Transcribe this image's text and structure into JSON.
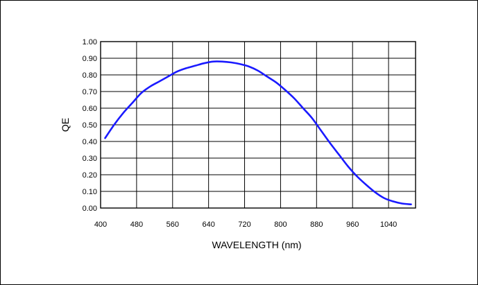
{
  "chart_data": {
    "type": "line",
    "xlabel": "WAVELENGTH (nm)",
    "ylabel": "QE",
    "xlim": [
      400,
      1100
    ],
    "ylim": [
      0,
      1.0
    ],
    "x_ticks": [
      400,
      480,
      560,
      640,
      720,
      800,
      880,
      960,
      1040
    ],
    "y_ticks": [
      0,
      0.1,
      0.2,
      0.3,
      0.4,
      0.5,
      0.6,
      0.7,
      0.8,
      0.9,
      1.0
    ],
    "x_tick_labels": [
      "400",
      "480",
      "560",
      "640",
      "720",
      "800",
      "880",
      "960",
      "1040"
    ],
    "y_tick_labels": [
      "0.00",
      "0.10",
      "0.20",
      "0.30",
      "0.40",
      "0.50",
      "0.60",
      "0.70",
      "0.80",
      "0.90",
      "1.00"
    ],
    "grid": true,
    "series": [
      {
        "color": "#1a1aff",
        "x": [
          410,
          430,
          450,
          470,
          490,
          510,
          530,
          550,
          570,
          590,
          610,
          630,
          650,
          670,
          690,
          710,
          730,
          750,
          770,
          790,
          810,
          830,
          850,
          870,
          890,
          910,
          930,
          950,
          970,
          990,
          1010,
          1030,
          1050,
          1070,
          1090
        ],
        "y": [
          0.42,
          0.5,
          0.57,
          0.63,
          0.69,
          0.73,
          0.76,
          0.79,
          0.82,
          0.84,
          0.855,
          0.87,
          0.88,
          0.88,
          0.875,
          0.865,
          0.85,
          0.825,
          0.79,
          0.755,
          0.71,
          0.66,
          0.6,
          0.54,
          0.465,
          0.39,
          0.32,
          0.25,
          0.19,
          0.14,
          0.095,
          0.06,
          0.04,
          0.027,
          0.022
        ]
      }
    ]
  }
}
